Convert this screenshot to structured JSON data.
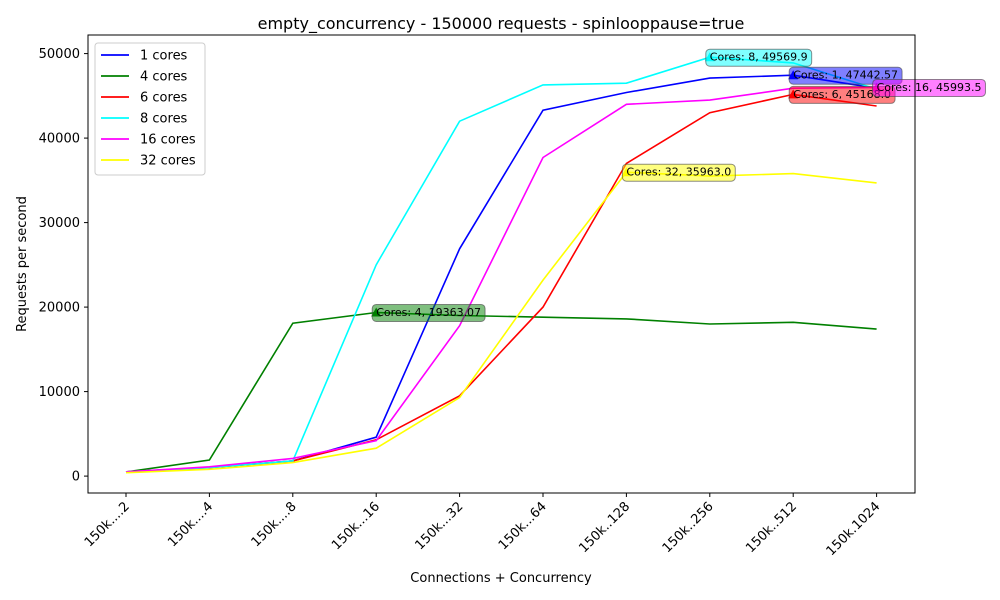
{
  "chart_data": {
    "type": "line",
    "title": "empty_concurrency - 150000 requests - spinlooppause=true",
    "xlabel": "Connections + Concurrency",
    "ylabel": "Requests per second",
    "categories": [
      "150k....2",
      "150k....4",
      "150k....8",
      "150k...16",
      "150k...32",
      "150k...64",
      "150k..128",
      "150k..256",
      "150k..512",
      "150k.1024"
    ],
    "ylim": [
      -2000,
      52200
    ],
    "yticks": [
      0,
      10000,
      20000,
      30000,
      40000,
      50000
    ],
    "legend_position": "top-left",
    "grid": false,
    "series": [
      {
        "name": "1 cores",
        "color": "#0000ff",
        "values": [
          500,
          1000,
          1800,
          4600,
          26900,
          43300,
          45400,
          47100,
          47443,
          45900
        ],
        "peak_index": 8,
        "annotation": "Cores: 1, 47442.57"
      },
      {
        "name": "4 cores",
        "color": "#008000",
        "values": [
          500,
          1900,
          18100,
          19363,
          19000,
          18800,
          18600,
          18000,
          18200,
          17400
        ],
        "peak_index": 3,
        "annotation": "Cores: 4, 19363.07"
      },
      {
        "name": "6 cores",
        "color": "#ff0000",
        "values": [
          500,
          1000,
          1800,
          4300,
          9500,
          20000,
          37000,
          43000,
          45168,
          43800
        ],
        "peak_index": 8,
        "annotation": "Cores: 6, 45168.0"
      },
      {
        "name": "8 cores",
        "color": "#00ffff",
        "values": [
          500,
          1000,
          1800,
          25000,
          42000,
          46300,
          46500,
          49570,
          48900,
          45800
        ],
        "peak_index": 7,
        "annotation": "Cores: 8, 49569.9"
      },
      {
        "name": "16 cores",
        "color": "#ff00ff",
        "values": [
          500,
          1100,
          2100,
          4200,
          17800,
          37700,
          44000,
          44500,
          45900,
          45994
        ],
        "peak_index": 9,
        "annotation": "Cores: 16, 45993.5"
      },
      {
        "name": "32 cores",
        "color": "#ffff00",
        "values": [
          400,
          800,
          1600,
          3300,
          9300,
          23200,
          35963,
          35500,
          35800,
          34700
        ],
        "peak_index": 6,
        "annotation": "Cores: 32, 35963.0"
      }
    ]
  }
}
